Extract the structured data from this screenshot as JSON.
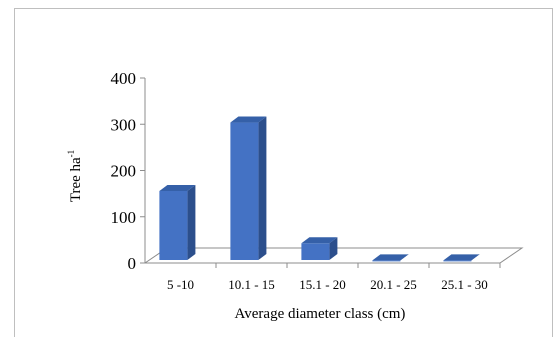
{
  "chart_data": {
    "type": "bar",
    "title": "",
    "xlabel": "Average diameter class (cm)",
    "ylabel": "Tree ha",
    "ylabel_superscript": "-1",
    "categories": [
      "5 -10",
      "10.1 - 15",
      "15.1 - 20",
      "20.1 - 25",
      "25.1 - 30"
    ],
    "values": [
      160,
      308,
      47,
      10,
      10
    ],
    "ylim": [
      0,
      400
    ],
    "yticks": [
      "0",
      "100",
      "200",
      "300",
      "400"
    ],
    "grid": false,
    "legend": "none",
    "bar_color": "#4472c4",
    "bar_side_color": "#2c4f8c",
    "bar_top_color": "#3560a8"
  }
}
